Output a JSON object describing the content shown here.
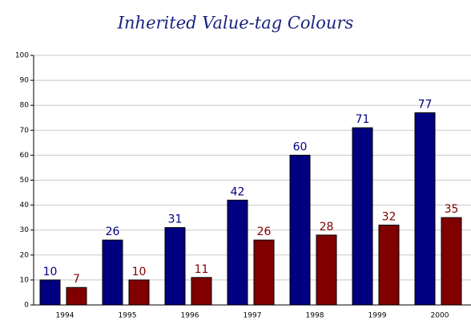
{
  "chart_data": {
    "type": "bar",
    "title": "Inherited Value-tag Colours",
    "categories": [
      "1994",
      "1995",
      "1996",
      "1997",
      "1998",
      "1999",
      "2000"
    ],
    "series": [
      {
        "color": "#000080",
        "values": [
          10,
          26,
          31,
          42,
          60,
          71,
          77
        ]
      },
      {
        "color": "#800000",
        "values": [
          7,
          10,
          11,
          26,
          28,
          32,
          35
        ]
      }
    ],
    "ylim": [
      0,
      100
    ],
    "yticks": [
      0,
      10,
      20,
      30,
      40,
      50,
      60,
      70,
      80,
      90,
      100
    ],
    "grid": true
  }
}
